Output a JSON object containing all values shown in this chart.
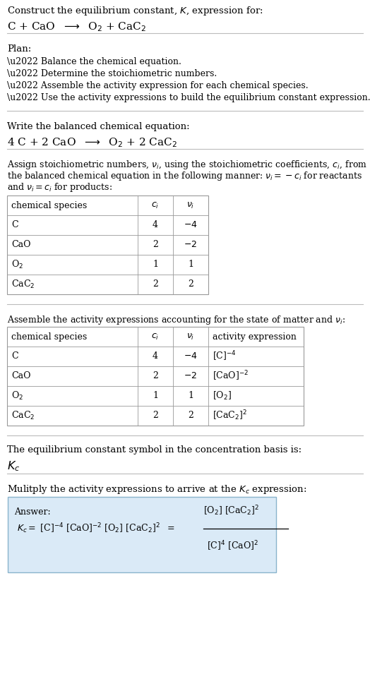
{
  "title_line1": "Construct the equilibrium constant, $K$, expression for:",
  "title_line2": "C + CaO  $\\longrightarrow$  O$_2$ + CaC$_2$",
  "plan_header": "Plan:",
  "plan_items": [
    "\\u2022 Balance the chemical equation.",
    "\\u2022 Determine the stoichiometric numbers.",
    "\\u2022 Assemble the activity expression for each chemical species.",
    "\\u2022 Use the activity expressions to build the equilibrium constant expression."
  ],
  "balanced_header": "Write the balanced chemical equation:",
  "balanced_eq": "4 C + 2 CaO  $\\longrightarrow$  O$_2$ + 2 CaC$_2$",
  "stoich_para": "Assign stoichiometric numbers, $\\nu_i$, using the stoichiometric coefficients, $c_i$, from\nthe balanced chemical equation in the following manner: $\\nu_i = -c_i$ for reactants\nand $\\nu_i = c_i$ for products:",
  "table1_header": [
    "chemical species",
    "$c_i$",
    "$\\nu_i$"
  ],
  "table1_rows": [
    [
      "C",
      "4",
      "$-4$"
    ],
    [
      "CaO",
      "2",
      "$-2$"
    ],
    [
      "O$_2$",
      "1",
      "1"
    ],
    [
      "CaC$_2$",
      "2",
      "2"
    ]
  ],
  "activity_header": "Assemble the activity expressions accounting for the state of matter and $\\nu_i$:",
  "table2_header": [
    "chemical species",
    "$c_i$",
    "$\\nu_i$",
    "activity expression"
  ],
  "table2_rows": [
    [
      "C",
      "4",
      "$-4$",
      "[C]$^{-4}$"
    ],
    [
      "CaO",
      "2",
      "$-2$",
      "[CaO]$^{-2}$"
    ],
    [
      "O$_2$",
      "1",
      "1",
      "[O$_2$]"
    ],
    [
      "CaC$_2$",
      "2",
      "2",
      "[CaC$_2$]$^2$"
    ]
  ],
  "kc_header": "The equilibrium constant symbol in the concentration basis is:",
  "kc_symbol": "$K_c$",
  "multiply_header": "Mulitply the activity expressions to arrive at the $K_c$ expression:",
  "answer_label": "Answer:",
  "answer_lhs": "$K_c = $ [C]$^{-4}$ [CaO]$^{-2}$ [O$_2$] [CaC$_2$]$^2$  $=$",
  "answer_num": "[O$_2$] [CaC$_2$]$^2$",
  "answer_den": "[C]$^4$ [CaO]$^2$",
  "bg_color": "#ffffff",
  "answer_bg": "#daeaf7",
  "answer_border": "#8ab4cc",
  "line_color": "#bbbbbb",
  "table_border": "#999999",
  "text_color": "#000000",
  "font_size": 9.5,
  "small_font": 9.0
}
